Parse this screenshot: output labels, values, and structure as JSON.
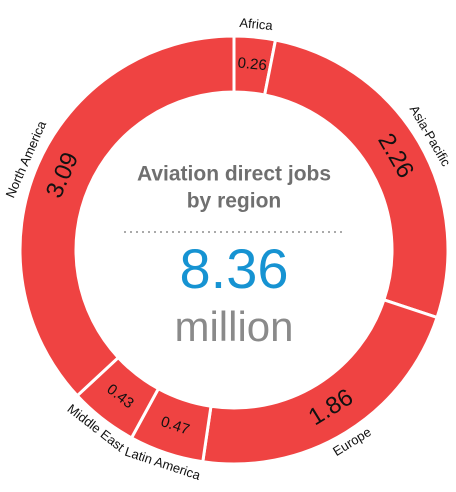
{
  "chart_data": {
    "type": "donut",
    "title": "Aviation direct jobs by region",
    "total": 8.36,
    "unit": "million",
    "categories": [
      "Africa",
      "Asia-Pacific",
      "Europe",
      "Latin America",
      "Middle East",
      "North America"
    ],
    "values": [
      0.26,
      2.26,
      1.86,
      0.47,
      0.43,
      3.09
    ],
    "color": "#ef4342"
  }
}
